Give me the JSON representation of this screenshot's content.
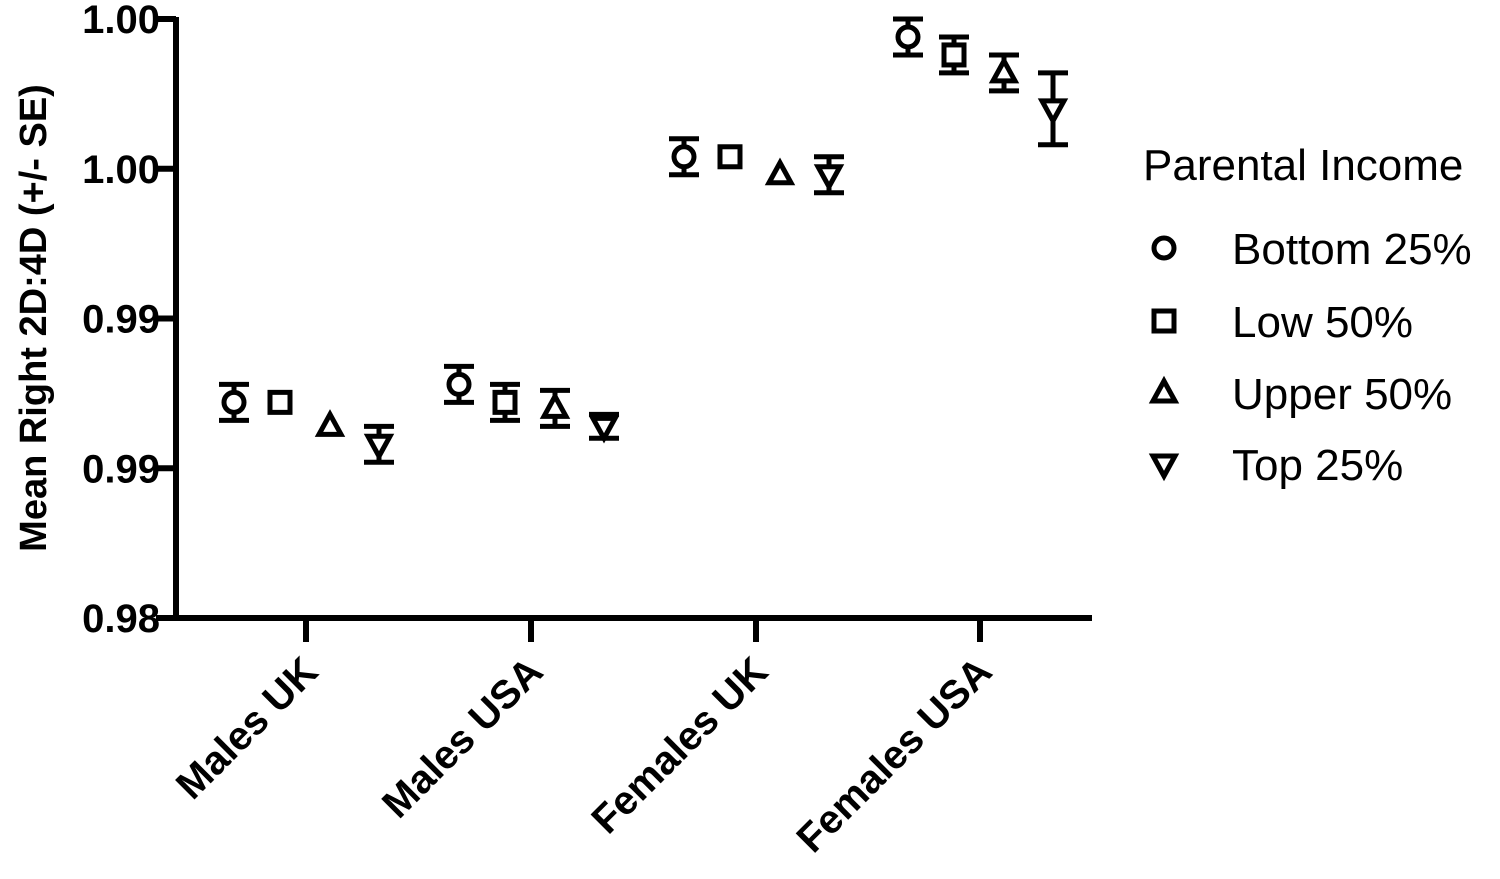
{
  "chart_data": {
    "type": "scatter",
    "ylabel": "Mean Right 2D:4D (+/- SE)",
    "xlabel": "",
    "categories": [
      "Males UK",
      "Males USA",
      "Females UK",
      "Females USA"
    ],
    "yticks": [
      {
        "value": 0.98,
        "label": "0.98"
      },
      {
        "value": 0.985,
        "label": "0.99"
      },
      {
        "value": 0.99,
        "label": "0.99"
      },
      {
        "value": 0.995,
        "label": "1.00"
      },
      {
        "value": 1.0,
        "label": "1.00"
      }
    ],
    "ylim": [
      0.98,
      1.0
    ],
    "grid": false,
    "legend": {
      "title": "Parental Income",
      "position": "right"
    },
    "series": [
      {
        "name": "Bottom 25%",
        "marker": "circle",
        "values": [
          0.9872,
          0.9878,
          0.9954,
          0.9994
        ],
        "se": [
          0.0006,
          0.0006,
          0.0006,
          0.0006
        ]
      },
      {
        "name": "Low 50%",
        "marker": "square",
        "values": [
          0.9872,
          0.9872,
          0.9954,
          0.9988
        ],
        "se": [
          0.0,
          0.0006,
          0.0,
          0.0006
        ]
      },
      {
        "name": "Upper 50%",
        "marker": "triangle-up",
        "values": [
          0.9864,
          0.987,
          0.9948,
          0.9982
        ],
        "se": [
          0.0,
          0.0006,
          0.0,
          0.0006
        ]
      },
      {
        "name": "Top 25%",
        "marker": "triangle-down",
        "values": [
          0.9858,
          0.9864,
          0.9948,
          0.997
        ],
        "se": [
          0.0006,
          0.0004,
          0.0006,
          0.0012
        ]
      }
    ]
  }
}
